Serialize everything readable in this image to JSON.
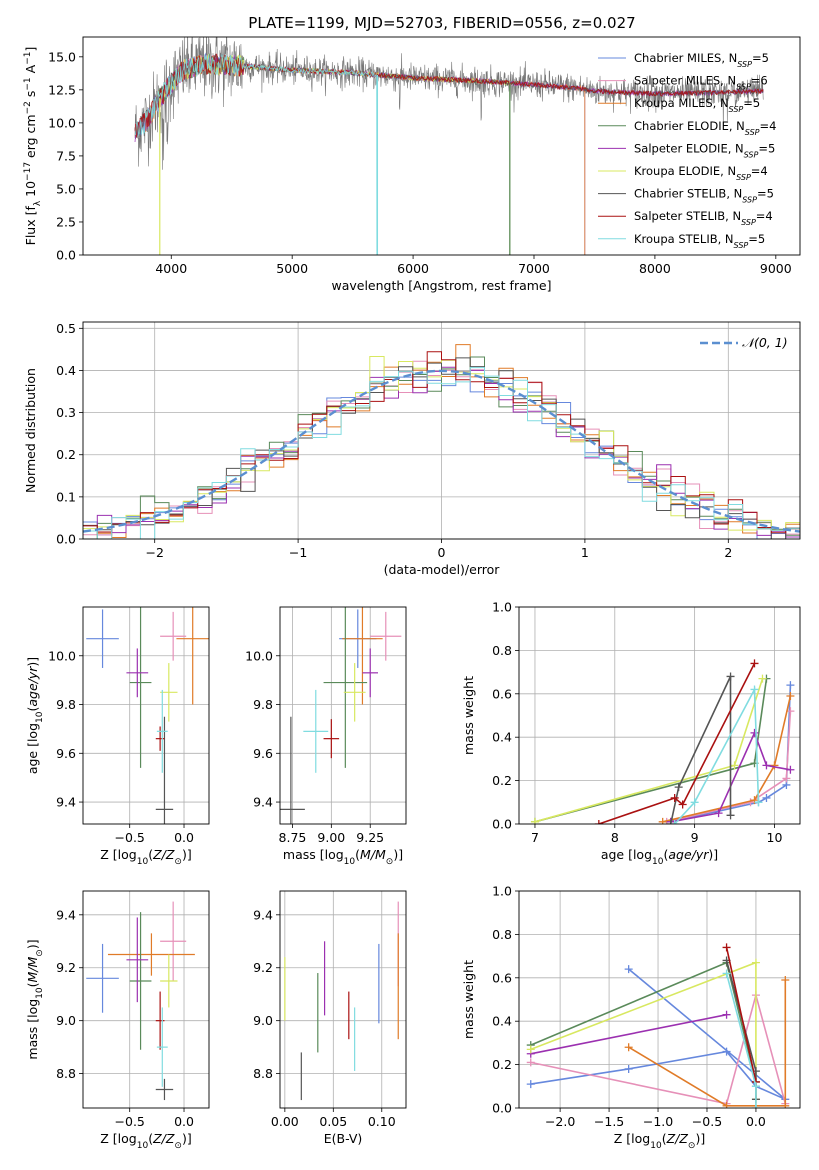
{
  "title": "PLATE=1199, MJD=52703, FIBERID=0556, z=0.027",
  "colors": {
    "Chabrier MILES": "#6688dd",
    "Salpeter MILES": "#e690b8",
    "Kroupa MILES": "#e07b28",
    "Chabrier ELODIE": "#5a8a5a",
    "Salpeter ELODIE": "#9b30b0",
    "Kroupa ELODIE": "#d8e860",
    "Chabrier STELIB": "#555555",
    "Salpeter STELIB": "#aa1111",
    "Kroupa STELIB": "#80dce0"
  },
  "chart_data": [
    {
      "id": "spectrum",
      "type": "line",
      "xlabel": "wavelength [Angstrom, rest frame]",
      "ylabel": "Flux [f_λ 10^-17 erg cm^-2 s^-1 A^-1]",
      "xlim": [
        3270,
        9200
      ],
      "ylim": [
        0,
        16.5
      ],
      "xticks": [
        4000,
        5000,
        6000,
        7000,
        8000,
        9000
      ],
      "yticks": [
        0.0,
        2.5,
        5.0,
        7.5,
        10.0,
        12.5,
        15.0
      ],
      "legend_position": "top-right",
      "series": [
        {
          "name": "Chabrier MILES, N_SSP=5",
          "name_parts": [
            "Chabrier MILES, N",
            "SSP",
            "=5"
          ],
          "color": "#6688dd"
        },
        {
          "name": "Salpeter MILES, N_SSP=6",
          "name_parts": [
            "Salpeter MILES, N",
            "SSP",
            "=6"
          ],
          "color": "#e690b8"
        },
        {
          "name": "Kroupa MILES, N_SSP=5",
          "name_parts": [
            "Kroupa MILES, N",
            "SSP",
            "=5"
          ],
          "color": "#e07b28"
        },
        {
          "name": "Chabrier ELODIE, N_SSP=4",
          "name_parts": [
            "Chabrier ELODIE, N",
            "SSP",
            "=4"
          ],
          "color": "#5a8a5a"
        },
        {
          "name": "Salpeter ELODIE, N_SSP=5",
          "name_parts": [
            "Salpeter ELODIE, N",
            "SSP",
            "=5"
          ],
          "color": "#9b30b0"
        },
        {
          "name": "Kroupa ELODIE, N_SSP=4",
          "name_parts": [
            "Kroupa ELODIE, N",
            "SSP",
            "=4"
          ],
          "color": "#d8e860"
        },
        {
          "name": "Chabrier STELIB, N_SSP=5",
          "name_parts": [
            "Chabrier STELIB, N",
            "SSP",
            "=5"
          ],
          "color": "#555555"
        },
        {
          "name": "Salpeter STELIB, N_SSP=4",
          "name_parts": [
            "Salpeter STELIB, N",
            "SSP",
            "=4"
          ],
          "color": "#aa1111"
        },
        {
          "name": "Kroupa STELIB, N_SSP=5",
          "name_parts": [
            "Kroupa STELIB, N",
            "SSP",
            "=5"
          ],
          "color": "#80dce0"
        }
      ],
      "continuum": {
        "x": [
          3700,
          3800,
          3900,
          4000,
          4100,
          4300,
          4600,
          5000,
          5500,
          6000,
          6500,
          7000,
          7400,
          7500,
          8000,
          8500,
          8900
        ],
        "y": [
          9.3,
          10.2,
          11.8,
          13.0,
          14.0,
          14.5,
          14.3,
          14.0,
          13.8,
          13.4,
          13.2,
          12.9,
          12.6,
          12.4,
          12.2,
          12.3,
          12.4
        ]
      },
      "model_edges": {
        "Kroupa ELODIE": [
          3890,
          6800
        ],
        "Chabrier ELODIE": [
          3890,
          6800
        ],
        "Kroupa STELIB": [
          3700,
          5700
        ],
        "Kroupa MILES": [
          3700,
          7420
        ],
        "Salpeter MILES": [
          3700,
          7420
        ],
        "Chabrier MILES": [
          3700,
          7420
        ]
      }
    },
    {
      "id": "residuals",
      "type": "histogram",
      "xlabel": "(data-model)/error",
      "ylabel": "Normed distribution",
      "xlim": [
        -2.5,
        2.5
      ],
      "ylim": [
        0,
        0.515
      ],
      "xticks": [
        -2,
        -1,
        0,
        1,
        2
      ],
      "yticks": [
        0.0,
        0.1,
        0.2,
        0.3,
        0.4,
        0.5
      ],
      "grid": true,
      "legend_position": "top-right",
      "reference_curve": {
        "name": "𝒩(0, 1)",
        "type": "gaussian",
        "mean": 0,
        "sigma": 1
      },
      "bin_width": 0.1
    },
    {
      "id": "age-vs-Z",
      "type": "errorbar",
      "xlabel": "Z [log10(Z/Z⊙)]",
      "ylabel": "age [log10(age/yr)]",
      "xlim": [
        -0.93,
        0.23
      ],
      "ylim": [
        9.31,
        10.2
      ],
      "xticks": [
        -0.5,
        0.0
      ],
      "yticks": [
        9.4,
        9.6,
        9.8,
        10.0
      ],
      "grid": true,
      "points": [
        {
          "model": "Chabrier MILES",
          "x": -0.75,
          "y": 10.07,
          "xerr": 0.15,
          "yerr": 0.12
        },
        {
          "model": "Salpeter MILES",
          "x": -0.1,
          "y": 10.08,
          "xerr": 0.12,
          "yerr": 0.1
        },
        {
          "model": "Kroupa MILES",
          "x": 0.08,
          "y": 10.07,
          "xerr": 0.15,
          "yerr": 0.27
        },
        {
          "model": "Chabrier ELODIE",
          "x": -0.4,
          "y": 9.89,
          "xerr": 0.1,
          "yerr": 0.35
        },
        {
          "model": "Salpeter ELODIE",
          "x": -0.43,
          "y": 9.93,
          "xerr": 0.1,
          "yerr": 0.1
        },
        {
          "model": "Kroupa ELODIE",
          "x": -0.14,
          "y": 9.85,
          "xerr": 0.08,
          "yerr": 0.12
        },
        {
          "model": "Chabrier STELIB",
          "x": -0.18,
          "y": 9.37,
          "xerr": 0.08,
          "yerr": 0.38
        },
        {
          "model": "Salpeter STELIB",
          "x": -0.22,
          "y": 9.66,
          "xerr": 0.04,
          "yerr": 0.05
        },
        {
          "model": "Kroupa STELIB",
          "x": -0.2,
          "y": 9.69,
          "xerr": 0.05,
          "yerr": 0.17
        }
      ]
    },
    {
      "id": "age-vs-mass",
      "type": "errorbar",
      "xlabel": "mass [log10(M/M⊙)]",
      "ylabel": "",
      "xlim": [
        8.67,
        9.48
      ],
      "ylim": [
        9.31,
        10.2
      ],
      "xticks": [
        8.75,
        9.0,
        9.25
      ],
      "yticks": [
        9.4,
        9.6,
        9.8,
        10.0
      ],
      "grid": true,
      "points": [
        {
          "model": "Chabrier MILES",
          "x": 9.17,
          "y": 10.07,
          "xerr": 0.12,
          "yerr": 0.12
        },
        {
          "model": "Salpeter MILES",
          "x": 9.35,
          "y": 10.08,
          "xerr": 0.1,
          "yerr": 0.1
        },
        {
          "model": "Kroupa MILES",
          "x": 9.2,
          "y": 10.07,
          "xerr": 0.13,
          "yerr": 0.27
        },
        {
          "model": "Chabrier ELODIE",
          "x": 9.09,
          "y": 9.89,
          "xerr": 0.14,
          "yerr": 0.35
        },
        {
          "model": "Salpeter ELODIE",
          "x": 9.25,
          "y": 9.93,
          "xerr": 0.05,
          "yerr": 0.1
        },
        {
          "model": "Kroupa ELODIE",
          "x": 9.15,
          "y": 9.85,
          "xerr": 0.07,
          "yerr": 0.12
        },
        {
          "model": "Chabrier STELIB",
          "x": 8.74,
          "y": 9.37,
          "xerr": 0.09,
          "yerr": 0.38
        },
        {
          "model": "Salpeter STELIB",
          "x": 9.0,
          "y": 9.66,
          "xerr": 0.05,
          "yerr": 0.08
        },
        {
          "model": "Kroupa STELIB",
          "x": 8.9,
          "y": 9.69,
          "xerr": 0.08,
          "yerr": 0.17
        }
      ]
    },
    {
      "id": "mass-vs-Z",
      "type": "errorbar",
      "xlabel": "Z [log10(Z/Z⊙)]",
      "ylabel": "mass [log10(M/M⊙)]",
      "xlim": [
        -0.93,
        0.23
      ],
      "ylim": [
        8.67,
        9.49
      ],
      "xticks": [
        -0.5,
        0.0
      ],
      "yticks": [
        8.8,
        9.0,
        9.2,
        9.4
      ],
      "grid": true,
      "points": [
        {
          "model": "Chabrier MILES",
          "x": -0.75,
          "y": 9.16,
          "xerr": 0.15,
          "yerr": 0.13
        },
        {
          "model": "Salpeter MILES",
          "x": -0.1,
          "y": 9.3,
          "xerr": 0.12,
          "yerr": 0.15
        },
        {
          "model": "Kroupa MILES",
          "x": -0.3,
          "y": 9.25,
          "xerr": 0.4,
          "yerr": 0.08
        },
        {
          "model": "Chabrier ELODIE",
          "x": -0.4,
          "y": 9.15,
          "xerr": 0.1,
          "yerr": 0.26
        },
        {
          "model": "Salpeter ELODIE",
          "x": -0.43,
          "y": 9.23,
          "xerr": 0.1,
          "yerr": 0.16
        },
        {
          "model": "Kroupa ELODIE",
          "x": -0.14,
          "y": 9.15,
          "xerr": 0.08,
          "yerr": 0.1
        },
        {
          "model": "Chabrier STELIB",
          "x": -0.18,
          "y": 8.74,
          "xerr": 0.08,
          "yerr": 0.04
        },
        {
          "model": "Salpeter STELIB",
          "x": -0.22,
          "y": 9.0,
          "xerr": 0.04,
          "yerr": 0.11
        },
        {
          "model": "Kroupa STELIB",
          "x": -0.2,
          "y": 8.9,
          "xerr": 0.05,
          "yerr": 0.15
        }
      ]
    },
    {
      "id": "mass-vs-ebv",
      "type": "errorbar",
      "xlabel": "E(B-V)",
      "ylabel": "",
      "xlim": [
        -0.005,
        0.125
      ],
      "ylim": [
        8.67,
        9.49
      ],
      "xticks": [
        0.0,
        0.05,
        0.1
      ],
      "yticks": [
        8.8,
        9.0,
        9.2,
        9.4
      ],
      "grid": true,
      "points": [
        {
          "model": "Chabrier MILES",
          "x": 0.097,
          "y": 9.14,
          "xerr": 0,
          "yerr": 0.15
        },
        {
          "model": "Salpeter MILES",
          "x": 0.117,
          "y": 9.29,
          "xerr": 0,
          "yerr": 0.16
        },
        {
          "model": "Kroupa MILES",
          "x": 0.117,
          "y": 9.13,
          "xerr": 0,
          "yerr": 0.2
        },
        {
          "model": "Chabrier ELODIE",
          "x": 0.034,
          "y": 9.03,
          "xerr": 0,
          "yerr": 0.15
        },
        {
          "model": "Salpeter ELODIE",
          "x": 0.041,
          "y": 9.16,
          "xerr": 0,
          "yerr": 0.14
        },
        {
          "model": "Kroupa ELODIE",
          "x": 0.0,
          "y": 9.12,
          "xerr": 0,
          "yerr": 0.12
        },
        {
          "model": "Chabrier STELIB",
          "x": 0.017,
          "y": 8.79,
          "xerr": 0,
          "yerr": 0.09
        },
        {
          "model": "Salpeter STELIB",
          "x": 0.066,
          "y": 9.02,
          "xerr": 0,
          "yerr": 0.09
        },
        {
          "model": "Kroupa STELIB",
          "x": 0.072,
          "y": 8.93,
          "xerr": 0,
          "yerr": 0.12
        }
      ]
    },
    {
      "id": "weight-vs-age",
      "type": "line",
      "xlabel": "age [log10(age/yr)]",
      "ylabel": "mass weight",
      "xlim": [
        6.8,
        10.32
      ],
      "ylim": [
        0,
        1.0
      ],
      "xticks": [
        7,
        8,
        9,
        10
      ],
      "yticks": [
        0.0,
        0.2,
        0.4,
        0.6,
        0.8,
        1.0
      ],
      "grid": true,
      "series": [
        {
          "model": "Chabrier MILES",
          "x": [
            8.7,
            9.8,
            9.9,
            10.15,
            10.2
          ],
          "y": [
            0.01,
            0.1,
            0.12,
            0.18,
            0.64
          ]
        },
        {
          "model": "Salpeter MILES",
          "x": [
            8.65,
            9.7,
            10.15,
            10.2
          ],
          "y": [
            0.01,
            0.1,
            0.21,
            0.52
          ]
        },
        {
          "model": "Kroupa MILES",
          "x": [
            8.6,
            9.75,
            10.0,
            10.2
          ],
          "y": [
            0.01,
            0.11,
            0.27,
            0.59
          ]
        },
        {
          "model": "Chabrier ELODIE",
          "x": [
            7.0,
            9.75,
            9.9
          ],
          "y": [
            0.01,
            0.28,
            0.67
          ]
        },
        {
          "model": "Salpeter ELODIE",
          "x": [
            8.7,
            9.3,
            9.75,
            9.9,
            10.2
          ],
          "y": [
            0.01,
            0.05,
            0.42,
            0.27,
            0.25
          ]
        },
        {
          "model": "Kroupa ELODIE",
          "x": [
            7.0,
            9.5,
            9.85
          ],
          "y": [
            0.01,
            0.27,
            0.67
          ]
        },
        {
          "model": "Chabrier STELIB",
          "x": [
            8.7,
            8.8,
            9.45,
            9.45
          ],
          "y": [
            0.0,
            0.17,
            0.68,
            0.04
          ]
        },
        {
          "model": "Salpeter STELIB",
          "x": [
            7.8,
            8.75,
            8.85,
            9.75
          ],
          "y": [
            0.0,
            0.12,
            0.09,
            0.74
          ]
        },
        {
          "model": "Kroupa STELIB",
          "x": [
            8.75,
            9.0,
            9.75,
            9.8
          ],
          "y": [
            0.0,
            0.1,
            0.62,
            0.1
          ]
        }
      ]
    },
    {
      "id": "weight-vs-Z",
      "type": "line",
      "xlabel": "Z [log10(Z/Z⊙)]",
      "ylabel": "mass weight",
      "xlim": [
        -2.42,
        0.45
      ],
      "ylim": [
        0,
        1.0
      ],
      "xticks": [
        -2.0,
        -1.5,
        -1.0,
        -0.5,
        0.0
      ],
      "yticks": [
        0.0,
        0.2,
        0.4,
        0.6,
        0.8,
        1.0
      ],
      "grid": true,
      "series": [
        {
          "model": "Chabrier MILES",
          "x": [
            -2.3,
            -1.3,
            -0.3,
            0.0,
            0.3,
            -1.3
          ],
          "y": [
            0.11,
            0.18,
            0.26,
            0.1,
            0.04,
            0.64
          ]
        },
        {
          "model": "Salpeter MILES",
          "x": [
            -2.3,
            -0.3,
            0.0,
            0.3
          ],
          "y": [
            0.21,
            0.02,
            0.52,
            0.02
          ]
        },
        {
          "model": "Kroupa MILES",
          "x": [
            -1.3,
            -0.3,
            0.3,
            0.3
          ],
          "y": [
            0.28,
            0.01,
            0.01,
            0.59
          ]
        },
        {
          "model": "Chabrier ELODIE",
          "x": [
            -2.3,
            -0.3,
            0.0
          ],
          "y": [
            0.29,
            0.67,
            0.12
          ]
        },
        {
          "model": "Salpeter ELODIE",
          "x": [
            -2.3,
            -0.3
          ],
          "y": [
            0.25,
            0.43
          ]
        },
        {
          "model": "Kroupa ELODIE",
          "x": [
            -2.3,
            0.0,
            0.0
          ],
          "y": [
            0.27,
            0.67,
            0.04
          ]
        },
        {
          "model": "Chabrier STELIB",
          "x": [
            -0.3,
            0.0,
            0.0
          ],
          "y": [
            0.68,
            0.17,
            0.04
          ]
        },
        {
          "model": "Salpeter STELIB",
          "x": [
            -0.3,
            0.0
          ],
          "y": [
            0.74,
            0.12
          ]
        },
        {
          "model": "Kroupa STELIB",
          "x": [
            -0.3,
            0.0,
            0.0
          ],
          "y": [
            0.62,
            0.1,
            0.0
          ]
        }
      ]
    }
  ]
}
